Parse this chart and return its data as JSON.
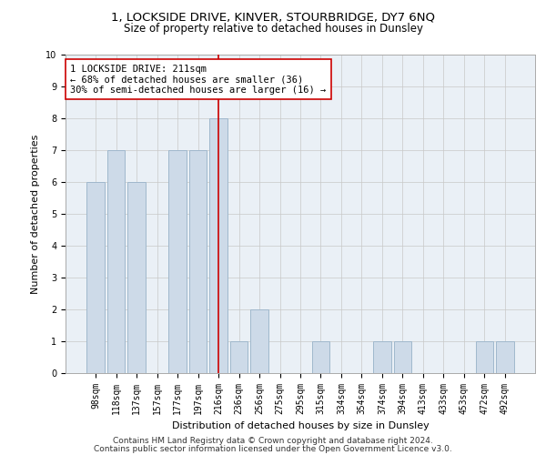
{
  "title1": "1, LOCKSIDE DRIVE, KINVER, STOURBRIDGE, DY7 6NQ",
  "title2": "Size of property relative to detached houses in Dunsley",
  "xlabel": "Distribution of detached houses by size in Dunsley",
  "ylabel": "Number of detached properties",
  "categories": [
    "98sqm",
    "118sqm",
    "137sqm",
    "157sqm",
    "177sqm",
    "197sqm",
    "216sqm",
    "236sqm",
    "256sqm",
    "275sqm",
    "295sqm",
    "315sqm",
    "334sqm",
    "354sqm",
    "374sqm",
    "394sqm",
    "413sqm",
    "433sqm",
    "453sqm",
    "472sqm",
    "492sqm"
  ],
  "values": [
    6,
    7,
    6,
    0,
    7,
    7,
    8,
    1,
    2,
    0,
    0,
    1,
    0,
    0,
    1,
    1,
    0,
    0,
    0,
    1,
    1
  ],
  "bar_color": "#cddaE8",
  "bar_edge_color": "#a0b8cc",
  "highlight_index": 6,
  "highlight_line_color": "#cc0000",
  "annotation_text": "1 LOCKSIDE DRIVE: 211sqm\n← 68% of detached houses are smaller (36)\n30% of semi-detached houses are larger (16) →",
  "annotation_box_color": "#ffffff",
  "annotation_box_edge": "#cc0000",
  "ylim": [
    0,
    10
  ],
  "yticks": [
    0,
    1,
    2,
    3,
    4,
    5,
    6,
    7,
    8,
    9,
    10
  ],
  "footer1": "Contains HM Land Registry data © Crown copyright and database right 2024.",
  "footer2": "Contains public sector information licensed under the Open Government Licence v3.0.",
  "title1_fontsize": 9.5,
  "title2_fontsize": 8.5,
  "xlabel_fontsize": 8,
  "ylabel_fontsize": 8,
  "tick_fontsize": 7,
  "annotation_fontsize": 7.5,
  "footer_fontsize": 6.5,
  "bg_color": "#eaf0f6"
}
